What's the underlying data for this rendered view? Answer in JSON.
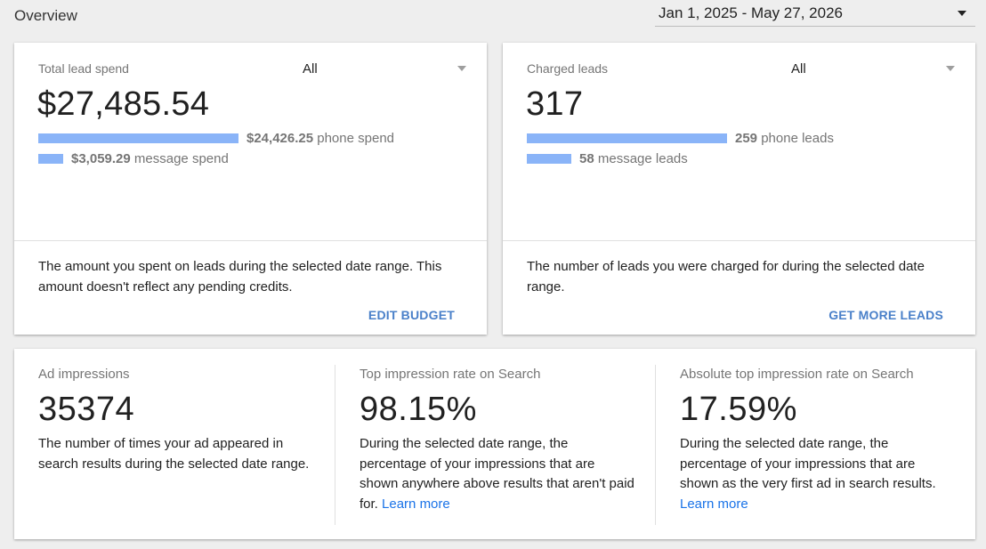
{
  "header": {
    "title": "Overview",
    "date_range": "Jan 1, 2025 - May 27, 2026"
  },
  "spend_card": {
    "label": "Total lead spend",
    "filter": "All",
    "value": "$27,485.54",
    "bars": [
      {
        "amount": "$24,426.25",
        "suffix": "phone spend",
        "fraction": 1.0
      },
      {
        "amount": "$3,059.29",
        "suffix": "message spend",
        "fraction": 0.125
      }
    ],
    "description": "The amount you spent on leads during the selected date range. This amount doesn't reflect any pending credits.",
    "action": "EDIT BUDGET"
  },
  "leads_card": {
    "label": "Charged leads",
    "filter": "All",
    "value": "317",
    "bars": [
      {
        "amount": "259",
        "suffix": "phone leads",
        "fraction": 1.0
      },
      {
        "amount": "58",
        "suffix": "message leads",
        "fraction": 0.224
      }
    ],
    "description": "The number of leads you were charged for during the selected date range.",
    "action": "GET MORE LEADS"
  },
  "impressions": [
    {
      "label": "Ad impressions",
      "value": "35374",
      "description": "The number of times your ad appeared in search results during the selected date range.",
      "link": ""
    },
    {
      "label": "Top impression rate on Search",
      "value": "98.15%",
      "description": "During the selected date range, the percentage of your impressions that are shown anywhere above results that aren't paid for.",
      "link": "Learn more"
    },
    {
      "label": "Absolute top impression rate on Search",
      "value": "17.59%",
      "description": "During the selected date range, the percentage of your impressions that are shown as the very first ad in search results.",
      "link": "Learn more"
    }
  ],
  "colors": {
    "bar": "#8ab4f8",
    "action": "#4a80c9",
    "link": "#1a73e8"
  }
}
